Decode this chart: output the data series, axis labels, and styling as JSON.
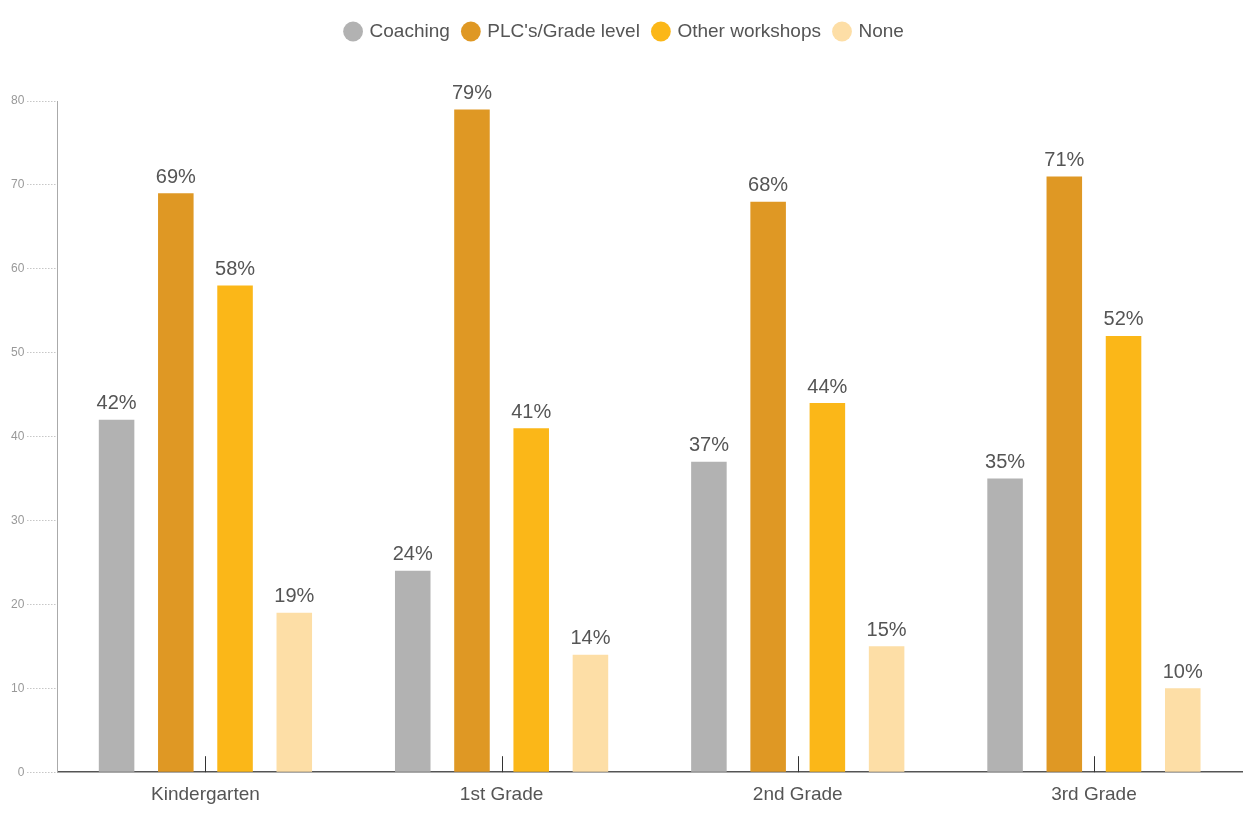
{
  "chart_data": {
    "type": "bar",
    "categories": [
      "Kindergarten",
      "1st Grade",
      "2nd Grade",
      "3rd Grade"
    ],
    "series": [
      {
        "name": "Coaching",
        "color": "#b2b2b2",
        "values": [
          42,
          24,
          37,
          35
        ],
        "value_labels": [
          "42%",
          "24%",
          "37%",
          "35%"
        ]
      },
      {
        "name": "PLC's/Grade level",
        "color": "#df9824",
        "values": [
          69,
          79,
          68,
          71
        ],
        "value_labels": [
          "69%",
          "79%",
          "68%",
          "71%"
        ]
      },
      {
        "name": "Other workshops",
        "color": "#fbb718",
        "values": [
          58,
          41,
          44,
          52
        ],
        "value_labels": [
          "58%",
          "41%",
          "44%",
          "52%"
        ]
      },
      {
        "name": "None",
        "color": "#fddea6",
        "values": [
          19,
          14,
          15,
          10
        ],
        "value_labels": [
          "19%",
          "14%",
          "15%",
          "10%"
        ]
      }
    ],
    "ylim": [
      0,
      80
    ],
    "yticks": [
      0,
      10,
      20,
      30,
      40,
      50,
      60,
      70,
      80
    ],
    "legend": "top"
  }
}
